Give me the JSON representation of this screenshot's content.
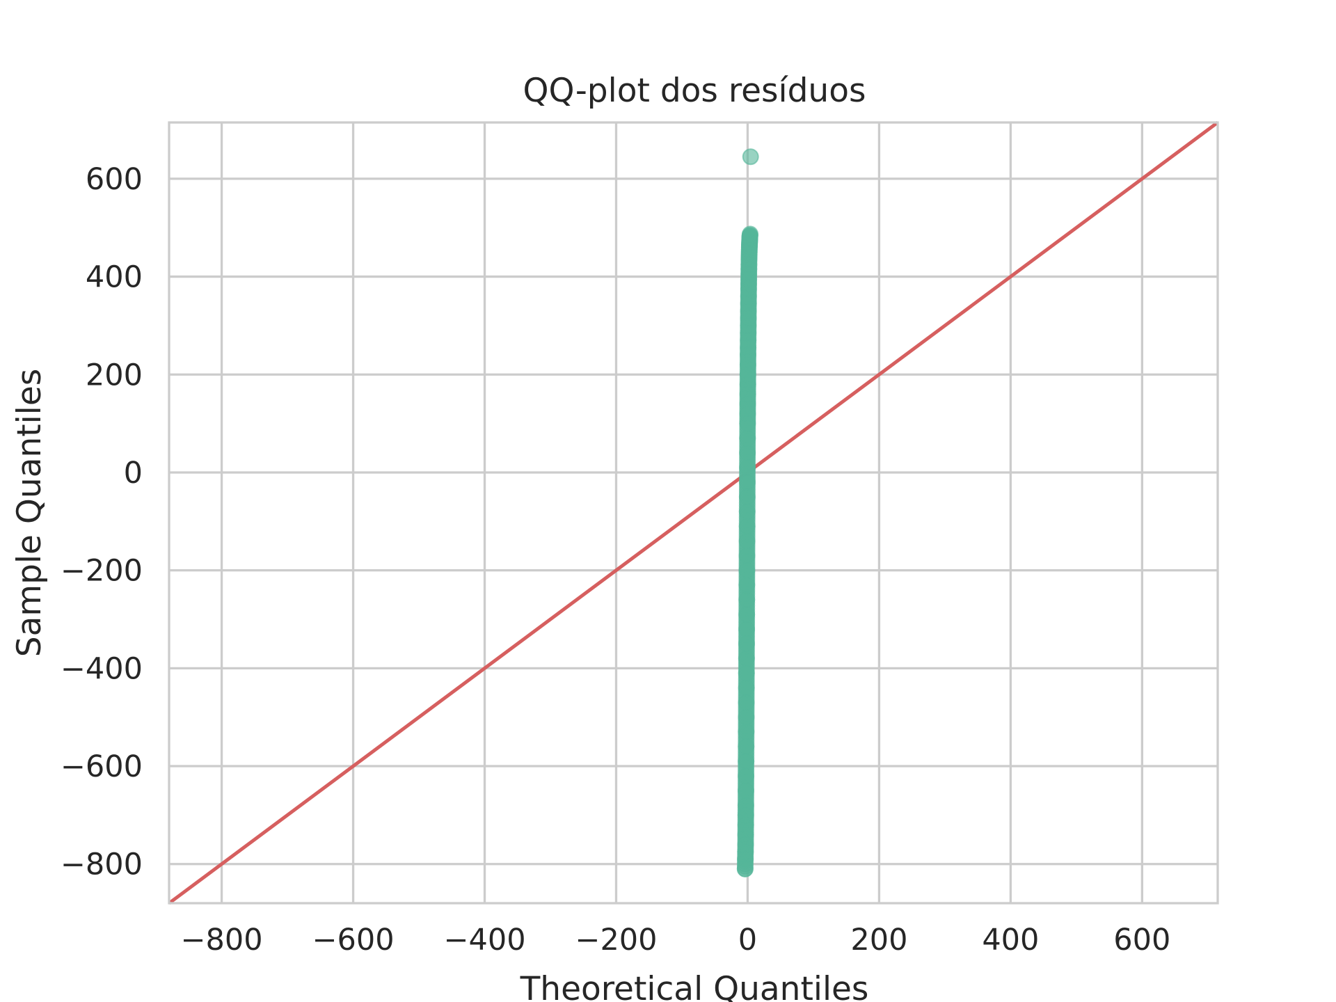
{
  "chart_data": {
    "type": "scatter",
    "title": "QQ-plot dos resíduos",
    "xlabel": "Theoretical Quantiles",
    "ylabel": "Sample Quantiles",
    "xlim": [
      -880,
      715
    ],
    "ylim": [
      -880,
      715
    ],
    "xticks": [
      -800,
      -600,
      -400,
      -200,
      0,
      200,
      400,
      600
    ],
    "yticks": [
      -800,
      -600,
      -400,
      -200,
      0,
      200,
      400,
      600
    ],
    "xtick_labels": [
      "−800",
      "−600",
      "−400",
      "−200",
      "0",
      "200",
      "400",
      "600"
    ],
    "ytick_labels": [
      "−800",
      "−600",
      "−400",
      "−200",
      "0",
      "200",
      "400",
      "600"
    ],
    "grid": true,
    "reference_line": {
      "type": "45-degree",
      "points": [
        [
          -880,
          -880
        ],
        [
          715,
          715
        ]
      ],
      "color": "#d65f5f"
    },
    "series": [
      {
        "marker_color": "#55b699",
        "x": [
          -3.8,
          -3.5,
          -3.3,
          -3.1,
          -3.0,
          -2.9,
          -2.8,
          -2.7,
          -2.6,
          -2.5,
          -2.4,
          -2.3,
          -2.2,
          -2.1,
          -2.0,
          -1.9,
          -1.8,
          -1.7,
          -1.6,
          -1.5,
          -1.4,
          -1.3,
          -1.2,
          -1.1,
          -1.0,
          -0.9,
          -0.8,
          -0.7,
          -0.6,
          -0.5,
          -0.4,
          -0.3,
          -0.2,
          -0.1,
          0.0,
          0.1,
          0.2,
          0.3,
          0.4,
          0.5,
          0.6,
          0.7,
          0.8,
          0.9,
          1.0,
          1.1,
          1.2,
          1.3,
          1.4,
          1.5,
          1.6,
          1.7,
          1.8,
          1.9,
          2.0,
          2.1,
          2.2,
          2.3,
          2.4,
          2.5,
          2.6,
          2.7,
          2.8,
          2.9,
          3.0,
          3.1,
          3.2,
          3.3,
          3.5,
          3.8,
          4.5
        ],
        "y": [
          -810,
          -790,
          -775,
          -760,
          -740,
          -720,
          -700,
          -680,
          -650,
          -620,
          -590,
          -560,
          -530,
          -500,
          -470,
          -440,
          -410,
          -380,
          -350,
          -320,
          -290,
          -260,
          -230,
          -200,
          -170,
          -140,
          -110,
          -80,
          -50,
          -20,
          10,
          40,
          70,
          100,
          120,
          140,
          160,
          180,
          200,
          220,
          240,
          255,
          270,
          285,
          300,
          315,
          330,
          345,
          360,
          375,
          385,
          395,
          405,
          415,
          425,
          435,
          440,
          445,
          450,
          455,
          460,
          463,
          466,
          469,
          472,
          475,
          478,
          481,
          484,
          487,
          645
        ]
      }
    ]
  }
}
